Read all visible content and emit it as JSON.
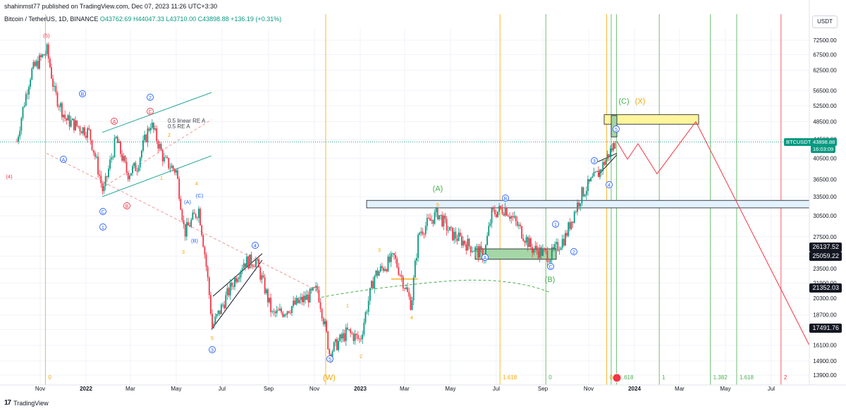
{
  "header": {
    "publisher": "shahinmst77 published on TradingView.com, Dec 07, 2023 11:26 UTC+3:30",
    "symbol": "Bitcoin / TetherUS, 1D, BINANCE",
    "open": "O43762.69",
    "high": "H44047.33",
    "low": "L43710.00",
    "close": "C43898.88",
    "change": "+136.19 (+0.31%)"
  },
  "currency_button": "USDT",
  "brand": "TradingView",
  "symbol_tag": "BTCUSDT",
  "last_price_tag": "43898.88",
  "countdown_tag": "16:03:09",
  "price_tags": [
    "26137.52",
    "25059.22",
    "21352.03",
    "17491.76"
  ],
  "colors": {
    "up": "#089981",
    "down": "#f23645",
    "orange": "#f7a600",
    "green": "#4caf50",
    "red": "#f23645",
    "blue": "#2962ff",
    "yellow_box": "#fff59d",
    "green_box": "#a5d6a7",
    "blue_box": "#e3f2fd"
  },
  "chart_data": {
    "type": "candlestick",
    "symbol": "BTCUSDT",
    "timeframe": "1D",
    "x_ticks": [
      "Nov",
      "2022",
      "Mar",
      "May",
      "Jul",
      "Sep",
      "Nov",
      "2023",
      "Mar",
      "May",
      "Jul",
      "Sep",
      "Nov",
      "2024",
      "Mar",
      "May",
      "Jul"
    ],
    "y_ticks": [
      72500,
      67500,
      62500,
      56500,
      52500,
      48500,
      44500,
      40500,
      36500,
      33500,
      30500,
      27500,
      25000,
      23500,
      21900,
      20300,
      18700,
      17400,
      16100,
      14900,
      13900
    ],
    "y_tick_labels": [
      "72500.00",
      "67500.00",
      "62500.00",
      "56500.00",
      "52500.00",
      "48500.00",
      "44500.00",
      "40500.00",
      "36500.00",
      "33500.00",
      "30500.00",
      "27500.00",
      "25000.00",
      "23500.00",
      "21900.00",
      "20300.00",
      "18700.00",
      "17400.00",
      "16100.00",
      "14900.00",
      "13900.00"
    ],
    "y_scale": "log",
    "price_path": [
      [
        "2021-10-01",
        44000
      ],
      [
        "2021-10-20",
        62000
      ],
      [
        "2021-11-10",
        68800
      ],
      [
        "2021-11-20",
        56000
      ],
      [
        "2021-12-05",
        49000
      ],
      [
        "2021-12-20",
        47500
      ],
      [
        "2022-01-05",
        46000
      ],
      [
        "2022-01-24",
        34000
      ],
      [
        "2022-02-10",
        44500
      ],
      [
        "2022-02-25",
        37500
      ],
      [
        "2022-03-10",
        39000
      ],
      [
        "2022-03-28",
        48200
      ],
      [
        "2022-04-15",
        40000
      ],
      [
        "2022-05-01",
        38000
      ],
      [
        "2022-05-12",
        28000
      ],
      [
        "2022-05-31",
        31500
      ],
      [
        "2022-06-18",
        17600
      ],
      [
        "2022-07-01",
        19500
      ],
      [
        "2022-07-30",
        24300
      ],
      [
        "2022-08-15",
        24400
      ],
      [
        "2022-09-06",
        18700
      ],
      [
        "2022-09-20",
        19000
      ],
      [
        "2022-10-25",
        20500
      ],
      [
        "2022-11-05",
        21200
      ],
      [
        "2022-11-21",
        15500
      ],
      [
        "2022-12-15",
        17200
      ],
      [
        "2023-01-01",
        16500
      ],
      [
        "2023-01-20",
        22700
      ],
      [
        "2023-02-15",
        24800
      ],
      [
        "2023-03-10",
        19600
      ],
      [
        "2023-03-20",
        28000
      ],
      [
        "2023-04-14",
        30900
      ],
      [
        "2023-05-01",
        28000
      ],
      [
        "2023-06-15",
        25000
      ],
      [
        "2023-06-25",
        30800
      ],
      [
        "2023-07-13",
        31700
      ],
      [
        "2023-08-17",
        26000
      ],
      [
        "2023-09-11",
        25000
      ],
      [
        "2023-10-01",
        27500
      ],
      [
        "2023-10-23",
        34000
      ],
      [
        "2023-11-15",
        37800
      ],
      [
        "2023-12-07",
        43898.88
      ]
    ],
    "last_price": 43898.88,
    "elliott_labels": [
      "(5)",
      "(4)",
      "B",
      "A",
      "C",
      "2",
      "1",
      "3",
      "4",
      "5",
      "(A)",
      "(B)",
      "(C)",
      "(W)",
      "(X)"
    ],
    "fib_time_labels": [
      "0",
      "1.618",
      "0",
      "0",
      "1.618",
      "1",
      "1.382",
      "1.618",
      "2"
    ],
    "annotations": [
      "0.5 linear RE A",
      "0.5 RE A"
    ],
    "horizontal_levels": [
      26137.52,
      25059.22,
      21352.03,
      17491.76
    ]
  }
}
